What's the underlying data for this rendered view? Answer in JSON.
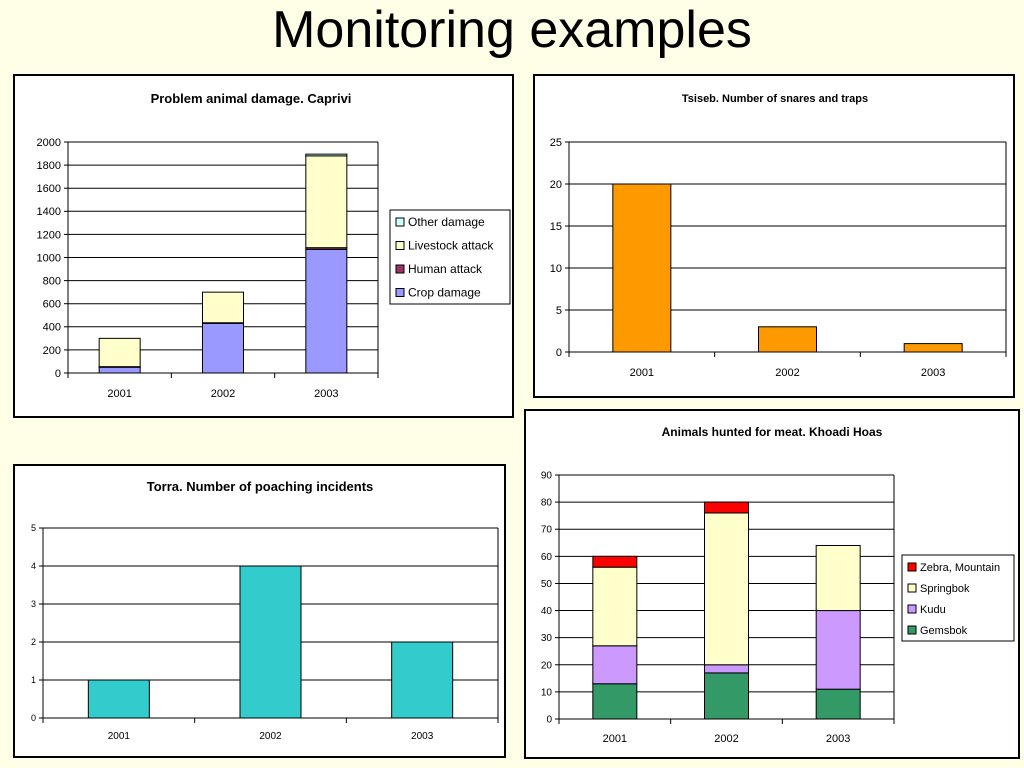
{
  "slide": {
    "title": "Monitoring examples"
  },
  "chart_data": [
    {
      "id": "caprivi",
      "type": "bar",
      "stacked": true,
      "title": "Problem animal damage. Caprivi",
      "categories": [
        "2001",
        "2002",
        "2003"
      ],
      "yticks": [
        0,
        200,
        400,
        600,
        800,
        1000,
        1200,
        1400,
        1600,
        1800,
        2000
      ],
      "ylim": [
        0,
        2000
      ],
      "grid": true,
      "legend_position": "right",
      "legend_order": [
        "Other damage",
        "Livestock attack",
        "Human attack",
        "Crop damage"
      ],
      "series": [
        {
          "name": "Crop damage",
          "color": "#9999FF",
          "values": [
            50,
            430,
            1070
          ]
        },
        {
          "name": "Human attack",
          "color": "#993366",
          "values": [
            5,
            5,
            15
          ]
        },
        {
          "name": "Livestock attack",
          "color": "#FFFFCC",
          "values": [
            245,
            265,
            795
          ]
        },
        {
          "name": "Other damage",
          "color": "#CCFFFF",
          "values": [
            0,
            0,
            15
          ]
        }
      ]
    },
    {
      "id": "tsiseb",
      "type": "bar",
      "title": "Tsiseb. Number of snares and traps",
      "categories": [
        "2001",
        "2002",
        "2003"
      ],
      "yticks": [
        0,
        5,
        10,
        15,
        20,
        25
      ],
      "ylim": [
        0,
        25
      ],
      "grid": true,
      "series": [
        {
          "color": "#FF9900",
          "values": [
            20,
            3,
            1
          ]
        }
      ]
    },
    {
      "id": "torra",
      "type": "bar",
      "title": "Torra. Number of poaching incidents",
      "categories": [
        "2001",
        "2002",
        "2003"
      ],
      "yticks": [
        0,
        1,
        2,
        3,
        4,
        5
      ],
      "ylim": [
        0,
        5
      ],
      "grid": true,
      "series": [
        {
          "color": "#33CCCC",
          "values": [
            1,
            4,
            2
          ]
        }
      ]
    },
    {
      "id": "khoadi",
      "type": "bar",
      "stacked": true,
      "title": "Animals hunted for meat. Khoadi Hoas",
      "categories": [
        "2001",
        "2002",
        "2003"
      ],
      "yticks": [
        0,
        10,
        20,
        30,
        40,
        50,
        60,
        70,
        80,
        90
      ],
      "ylim": [
        0,
        90
      ],
      "grid": true,
      "legend_position": "right",
      "legend_order": [
        "Zebra, Mountain",
        "Springbok",
        "Kudu",
        "Gemsbok"
      ],
      "series": [
        {
          "name": "Gemsbok",
          "color": "#339966",
          "values": [
            13,
            17,
            11
          ]
        },
        {
          "name": "Kudu",
          "color": "#CC99FF",
          "values": [
            14,
            3,
            29
          ]
        },
        {
          "name": "Springbok",
          "color": "#FFFFCC",
          "values": [
            29,
            56,
            24
          ]
        },
        {
          "name": "Zebra, Mountain",
          "color": "#FF0000",
          "values": [
            4,
            4,
            0
          ]
        }
      ]
    }
  ]
}
